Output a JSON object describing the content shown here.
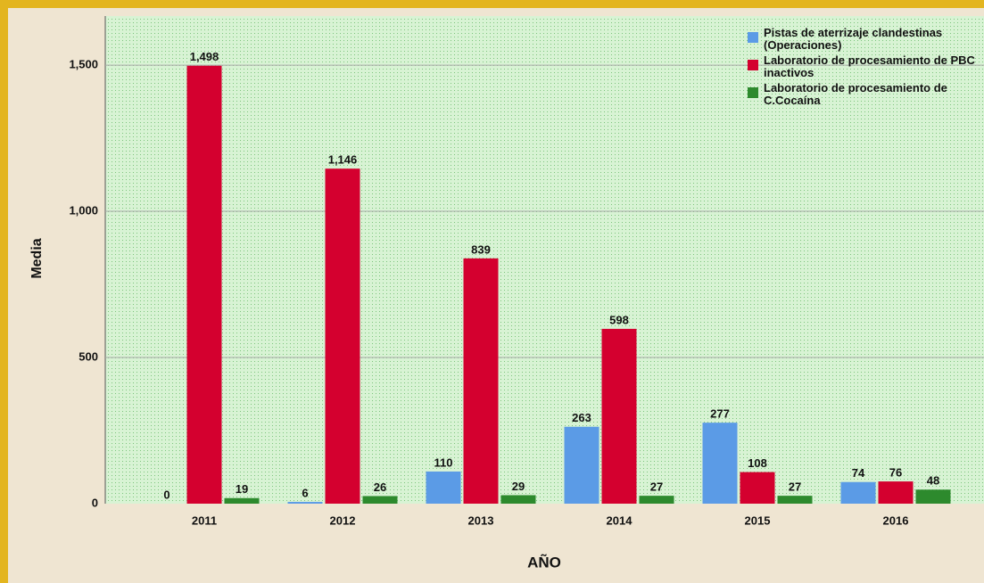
{
  "chart_data": {
    "type": "bar",
    "y_label": "Media",
    "x_label": "AÑO",
    "categories": [
      "2011",
      "2012",
      "2013",
      "2014",
      "2015",
      "2016"
    ],
    "series": [
      {
        "name": "Pistas de aterrizaje clandestinas (Operaciones)",
        "color": "#5b9be6",
        "values": [
          0,
          6,
          110,
          263,
          277,
          74
        ]
      },
      {
        "name": "Laboratorio de procesamiento de PBC inactivos",
        "color": "#d4002f",
        "values": [
          1498,
          1146,
          839,
          598,
          108,
          76
        ],
        "value_labels": [
          "1,498",
          "1,146",
          "839",
          "598",
          "108",
          "76"
        ]
      },
      {
        "name": "Laboratorio de procesamiento de C.Cocaína",
        "color": "#2d8a2d",
        "values": [
          19,
          26,
          29,
          27,
          27,
          48
        ]
      }
    ],
    "ylim": [
      0,
      1668
    ],
    "yticks": [
      0,
      500,
      {
        "value": 1000,
        "label": "1,000"
      },
      {
        "value": 1500,
        "label": "1,500"
      }
    ],
    "grid": true,
    "legend": "top-right"
  }
}
